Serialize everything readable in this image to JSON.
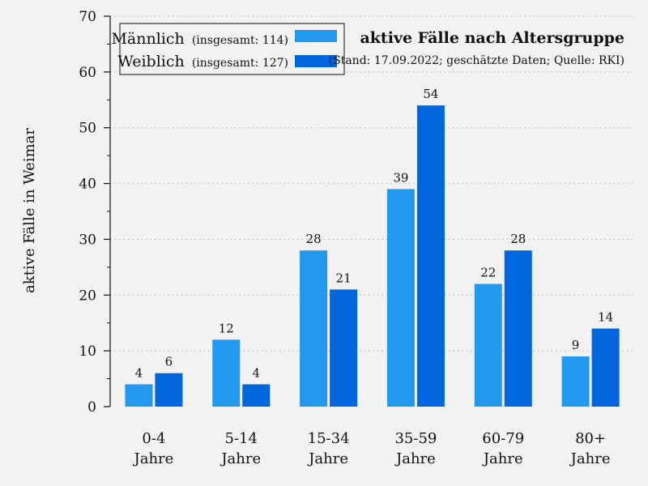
{
  "chart_data": {
    "type": "bar",
    "title": "aktive Fälle nach Altersgruppe",
    "subtitle": "(Stand: 17.09.2022; geschätzte Daten; Quelle: RKI)",
    "ylabel": "aktive Fälle in Weimar",
    "xlabel": "",
    "ylim": [
      0,
      70
    ],
    "yticks": [
      0,
      10,
      20,
      30,
      40,
      50,
      60,
      70
    ],
    "grid": "horizontal dotted",
    "legend_position": "top-left",
    "categories": [
      [
        "0-4",
        "Jahre"
      ],
      [
        "5-14",
        "Jahre"
      ],
      [
        "15-34",
        "Jahre"
      ],
      [
        "35-59",
        "Jahre"
      ],
      [
        "60-79",
        "Jahre"
      ],
      [
        "80+",
        "Jahre"
      ]
    ],
    "series": [
      {
        "name": "Männlich",
        "total_label": "(insgesamt: 114)",
        "color": "#2299ee",
        "values": [
          4,
          12,
          28,
          39,
          22,
          9
        ]
      },
      {
        "name": "Weiblich",
        "total_label": "(insgesamt: 127)",
        "color": "#0066dd",
        "values": [
          6,
          4,
          21,
          54,
          28,
          14
        ]
      }
    ]
  }
}
